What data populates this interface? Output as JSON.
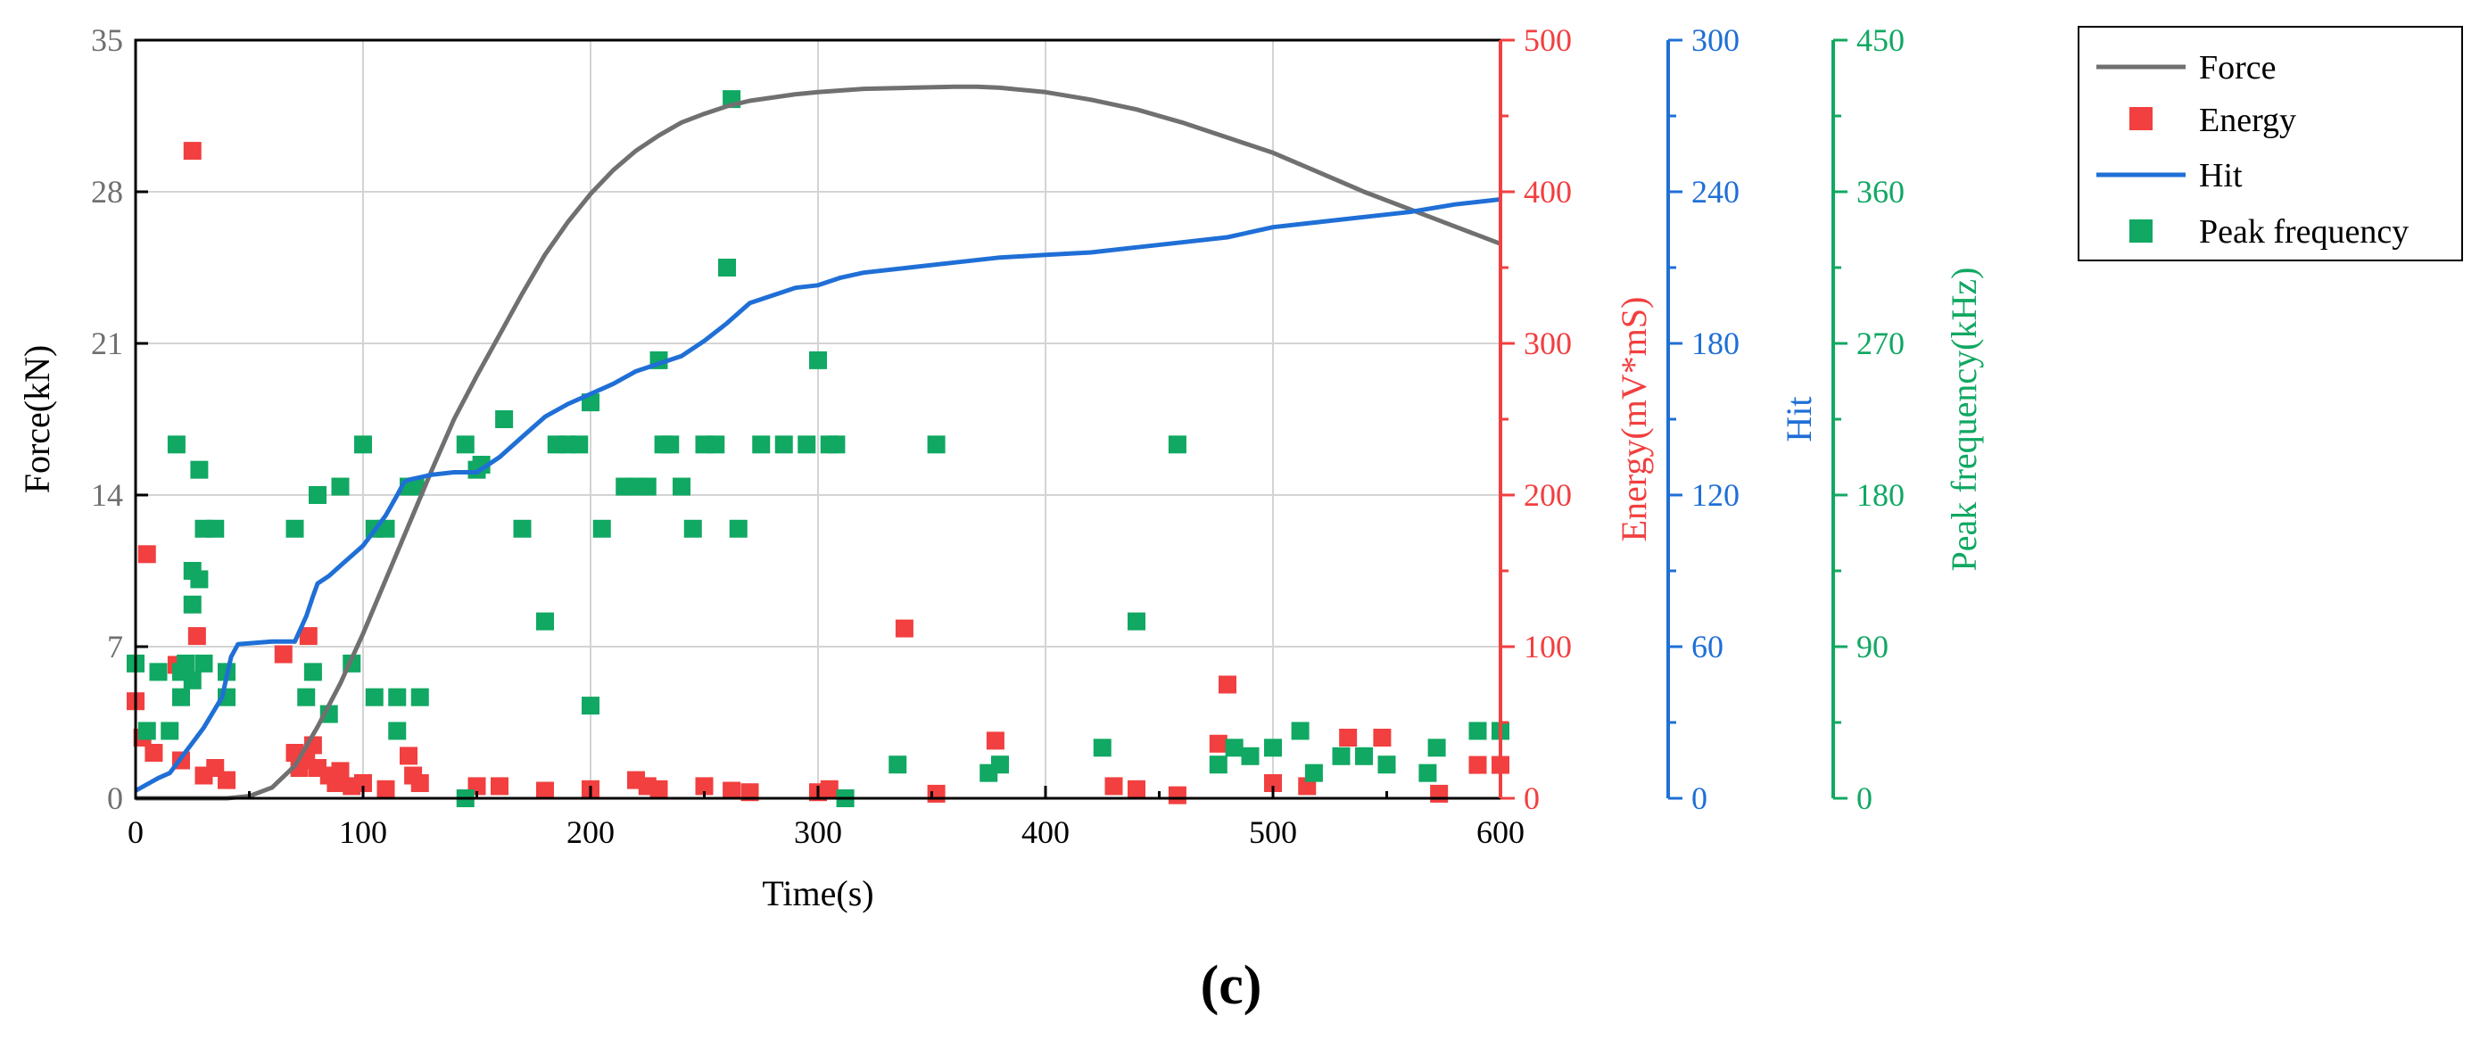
{
  "chart_data": {
    "type": "line+scatter",
    "caption": "(c)",
    "colors": {
      "force": "#707070",
      "energy": "#f23f3f",
      "hit": "#1f6fd6",
      "peak": "#10a862",
      "grid": "#d4d4d4",
      "axis": "#000000"
    },
    "x_axis": {
      "label": "Time(s)",
      "range": [
        0,
        600
      ],
      "ticks": [
        "0",
        "100",
        "200",
        "300",
        "400",
        "500",
        "600"
      ]
    },
    "y_axes": {
      "force": {
        "label": "Force(kN)",
        "range": [
          0,
          35
        ],
        "ticks": [
          "0",
          "7",
          "14",
          "21",
          "28",
          "35"
        ]
      },
      "energy": {
        "label": "Energy(mV*mS)",
        "range": [
          0,
          500
        ],
        "ticks": [
          "0",
          "100",
          "200",
          "300",
          "400",
          "500"
        ]
      },
      "hit": {
        "label": "Hit",
        "range": [
          0,
          300
        ],
        "ticks": [
          "0",
          "60",
          "120",
          "180",
          "240",
          "300"
        ]
      },
      "peak": {
        "label": "Peak frequency(kHz)",
        "range": [
          0,
          450
        ],
        "ticks": [
          "0",
          "90",
          "180",
          "270",
          "360",
          "450"
        ]
      }
    },
    "legend": {
      "placement": "right",
      "items": [
        {
          "label": "Force",
          "marker": "line",
          "series": "force"
        },
        {
          "label": "Energy",
          "marker": "square",
          "series": "energy"
        },
        {
          "label": "Hit",
          "marker": "line",
          "series": "hit"
        },
        {
          "label": "Peak frequency",
          "marker": "square",
          "series": "peak"
        }
      ]
    },
    "series": [
      {
        "name": "Force",
        "key": "force",
        "type": "line",
        "axis": "force",
        "x": [
          0,
          40,
          50,
          60,
          70,
          80,
          90,
          100,
          110,
          120,
          130,
          140,
          150,
          160,
          170,
          180,
          190,
          200,
          210,
          220,
          230,
          240,
          250,
          260,
          270,
          280,
          290,
          300,
          320,
          340,
          360,
          370,
          380,
          400,
          420,
          440,
          460,
          480,
          500,
          520,
          540,
          560,
          580,
          600
        ],
        "y": [
          0,
          0,
          0.1,
          0.5,
          1.5,
          3.3,
          5.3,
          7.6,
          10.1,
          12.6,
          15.1,
          17.5,
          19.5,
          21.4,
          23.3,
          25.1,
          26.6,
          27.9,
          29.0,
          29.9,
          30.6,
          31.2,
          31.6,
          31.95,
          32.2,
          32.35,
          32.5,
          32.6,
          32.75,
          32.8,
          32.85,
          32.85,
          32.8,
          32.6,
          32.25,
          31.8,
          31.2,
          30.5,
          29.8,
          28.9,
          28.0,
          27.2,
          26.4,
          25.6
        ]
      },
      {
        "name": "Hit",
        "key": "hit",
        "type": "step-line",
        "axis": "hit",
        "x": [
          0,
          10,
          15,
          20,
          25,
          30,
          38,
          42,
          45,
          60,
          70,
          72,
          75,
          78,
          80,
          85,
          90,
          95,
          100,
          105,
          110,
          115,
          118,
          120,
          125,
          130,
          140,
          150,
          160,
          170,
          180,
          190,
          200,
          210,
          220,
          230,
          240,
          250,
          260,
          270,
          280,
          290,
          300,
          310,
          320,
          340,
          360,
          380,
          400,
          420,
          440,
          460,
          480,
          500,
          520,
          540,
          560,
          580,
          600
        ],
        "y": [
          3,
          8,
          10,
          16,
          22,
          28,
          40,
          56,
          61,
          62,
          62,
          66,
          72,
          80,
          85,
          88,
          92,
          96,
          100,
          106,
          112,
          120,
          125,
          126,
          127,
          128,
          129,
          129,
          135,
          143,
          151,
          156,
          160,
          164,
          169,
          172,
          175,
          181,
          188,
          196,
          199,
          202,
          203,
          206,
          208,
          210,
          212,
          214,
          215,
          216,
          218,
          220,
          222,
          226,
          228,
          230,
          232,
          235,
          237
        ]
      },
      {
        "name": "Energy",
        "key": "energy",
        "type": "scatter",
        "axis": "energy",
        "x": [
          25,
          5,
          0,
          18,
          27,
          76,
          65,
          3,
          8,
          20,
          30,
          35,
          40,
          70,
          72,
          75,
          78,
          80,
          85,
          88,
          90,
          95,
          100,
          110,
          120,
          122,
          125,
          150,
          160,
          180,
          200,
          220,
          225,
          230,
          250,
          262,
          270,
          300,
          305,
          338,
          352,
          378,
          430,
          440,
          458,
          476,
          480,
          500,
          515,
          533,
          548,
          573,
          590,
          600
        ],
        "y": [
          427,
          161,
          64,
          88,
          107,
          107,
          95,
          40,
          30,
          25,
          15,
          20,
          12,
          30,
          20,
          25,
          35,
          20,
          15,
          10,
          18,
          8,
          10,
          6,
          28,
          15,
          10,
          8,
          8,
          5,
          6,
          12,
          8,
          6,
          8,
          5,
          4,
          4,
          6,
          112,
          3,
          38,
          8,
          6,
          2,
          36,
          75,
          10,
          8,
          40,
          40,
          3,
          22,
          22
        ]
      },
      {
        "name": "Peak frequency",
        "key": "peak",
        "type": "scatter",
        "axis": "peak",
        "x": [
          25,
          18,
          40,
          0,
          5,
          10,
          20,
          25,
          28,
          35,
          40,
          30,
          22,
          28,
          15,
          20,
          30,
          25,
          70,
          75,
          80,
          85,
          78,
          90,
          95,
          100,
          105,
          110,
          115,
          120,
          105,
          115,
          123,
          125,
          145,
          150,
          152,
          162,
          170,
          180,
          185,
          190,
          195,
          200,
          205,
          215,
          220,
          225,
          230,
          232,
          235,
          240,
          245,
          250,
          255,
          260,
          262,
          265,
          275,
          285,
          295,
          300,
          305,
          308,
          312,
          335,
          352,
          375,
          380,
          425,
          440,
          458,
          476,
          483,
          490,
          500,
          512,
          518,
          530,
          540,
          550,
          568,
          572,
          590,
          600,
          145,
          200
        ],
        "y": [
          70,
          210,
          60,
          80,
          40,
          75,
          75,
          135,
          195,
          160,
          75,
          160,
          80,
          130,
          40,
          60,
          80,
          115,
          160,
          60,
          180,
          50,
          75,
          185,
          80,
          210,
          160,
          160,
          60,
          185,
          60,
          40,
          185,
          60,
          210,
          195,
          198,
          225,
          160,
          105,
          210,
          210,
          210,
          235,
          160,
          185,
          185,
          185,
          260,
          210,
          210,
          185,
          160,
          210,
          210,
          315,
          415,
          160,
          210,
          210,
          210,
          260,
          210,
          210,
          0,
          20,
          210,
          15,
          20,
          30,
          105,
          210,
          20,
          30,
          25,
          30,
          40,
          15,
          25,
          25,
          20,
          15,
          30,
          40,
          40,
          0,
          55
        ]
      }
    ]
  }
}
